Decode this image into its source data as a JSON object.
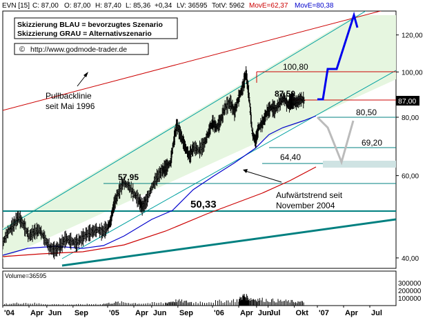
{
  "header": {
    "ticker": "EVN [15]",
    "close": "C: 87,00",
    "open": "O: 87,00",
    "high": "H: 87,40",
    "low": "L: 85,36",
    "change": "+0,34",
    "lv": "LV: 36595",
    "totv": "TotV: 5962",
    "ma1": "MovE=62,37",
    "ma2": "MovE=80,38"
  },
  "colors": {
    "candle": "#000000",
    "ma_fast": "#0000cc",
    "ma_slow": "#cc0000",
    "channel": "#00a0a0",
    "channel_fill": "#e6f6e0",
    "pullback": "#cc0000",
    "scenario_blue": "#0000ee",
    "scenario_grey": "#bbbbbb",
    "target_box": "#cfe3e3",
    "support_teal": "#008080",
    "resistance_red": "#cc0000"
  },
  "legend_box": {
    "line1": "Skizzierung BLAU = bevorzugtes Szenario",
    "line2": "Skizzierung GRAU = Alternativszenario",
    "copyright_symbol": "©",
    "url": "http://www.godmode-trader.de"
  },
  "annotations": {
    "pullback_line1": "Pullbacklinie",
    "pullback_line2": "seit Mai 1996",
    "uptrend_line1": "Aufwärtstrend seit",
    "uptrend_line2": "November 2004",
    "current_price_label": "87,00"
  },
  "volume_panel": {
    "label": "Volume=36595",
    "ticks": [
      "300000",
      "200000",
      "100000"
    ]
  },
  "chart_data": {
    "type": "candlestick",
    "title": "",
    "y_scale": "log",
    "ylim": [
      38,
      135
    ],
    "y_ticks": [
      40,
      60,
      80,
      100,
      120
    ],
    "y_tick_labels": [
      "40,00",
      "60,00",
      "80,00",
      "100,00",
      "120,00"
    ],
    "x_labels": [
      "'04",
      "Apr",
      "Jun",
      "Sep",
      "'05",
      "Apr",
      "Jun",
      "Sep",
      "'06",
      "Apr",
      "Jun",
      "Jul",
      "Okt",
      "'07",
      "Apr",
      "Jul"
    ],
    "price_levels": [
      {
        "value": 100.8,
        "label": "100,80"
      },
      {
        "value": 87.5,
        "label": "87,50"
      },
      {
        "value": 80.5,
        "label": "80,50"
      },
      {
        "value": 69.2,
        "label": "69,20"
      },
      {
        "value": 64.4,
        "label": "64,40"
      },
      {
        "value": 57.95,
        "label": "57,95"
      },
      {
        "value": 50.33,
        "label": "50,33"
      }
    ],
    "close_path": [
      [
        2004.0,
        43
      ],
      [
        2004.05,
        45.5
      ],
      [
        2004.1,
        47
      ],
      [
        2004.15,
        49
      ],
      [
        2004.2,
        47
      ],
      [
        2004.25,
        44.5
      ],
      [
        2004.3,
        45.5
      ],
      [
        2004.35,
        46
      ],
      [
        2004.4,
        44
      ],
      [
        2004.45,
        42
      ],
      [
        2004.5,
        41.5
      ],
      [
        2004.55,
        42.5
      ],
      [
        2004.6,
        44
      ],
      [
        2004.65,
        43.5
      ],
      [
        2004.7,
        43
      ],
      [
        2004.75,
        44
      ],
      [
        2004.8,
        45
      ],
      [
        2004.85,
        45.5
      ],
      [
        2004.9,
        46
      ],
      [
        2004.95,
        45.5
      ],
      [
        2005.0,
        46.5
      ],
      [
        2005.03,
        48
      ],
      [
        2005.06,
        52
      ],
      [
        2005.1,
        55
      ],
      [
        2005.15,
        58
      ],
      [
        2005.2,
        57
      ],
      [
        2005.25,
        55
      ],
      [
        2005.3,
        53
      ],
      [
        2005.33,
        51.5
      ],
      [
        2005.37,
        53
      ],
      [
        2005.42,
        56.5
      ],
      [
        2005.47,
        59.5
      ],
      [
        2005.52,
        61.5
      ],
      [
        2005.56,
        62.5
      ],
      [
        2005.6,
        64
      ],
      [
        2005.63,
        71
      ],
      [
        2005.66,
        77
      ],
      [
        2005.7,
        73
      ],
      [
        2005.74,
        69
      ],
      [
        2005.78,
        66
      ],
      [
        2005.82,
        69
      ],
      [
        2005.87,
        68
      ],
      [
        2005.92,
        70
      ],
      [
        2005.96,
        74
      ],
      [
        2006.0,
        78
      ],
      [
        2006.04,
        76
      ],
      [
        2006.08,
        79
      ],
      [
        2006.12,
        84
      ],
      [
        2006.17,
        86
      ],
      [
        2006.21,
        82
      ],
      [
        2006.25,
        88
      ],
      [
        2006.29,
        93
      ],
      [
        2006.32,
        99.5
      ],
      [
        2006.35,
        88
      ],
      [
        2006.38,
        74
      ],
      [
        2006.41,
        71
      ],
      [
        2006.44,
        76
      ],
      [
        2006.48,
        78
      ],
      [
        2006.52,
        82
      ],
      [
        2006.56,
        84
      ],
      [
        2006.6,
        83
      ],
      [
        2006.64,
        86
      ],
      [
        2006.68,
        88
      ],
      [
        2006.72,
        85
      ],
      [
        2006.76,
        87
      ],
      [
        2006.8,
        86
      ],
      [
        2006.84,
        87.5
      ],
      [
        2006.88,
        87
      ]
    ],
    "volume_spikes": [
      [
        2004.0,
        0.05
      ],
      [
        2004.2,
        0.1
      ],
      [
        2004.45,
        0.05
      ],
      [
        2004.7,
        0.04
      ],
      [
        2004.95,
        0.06
      ],
      [
        2005.1,
        0.12
      ],
      [
        2005.3,
        0.08
      ],
      [
        2005.55,
        0.1
      ],
      [
        2005.66,
        0.18
      ],
      [
        2005.8,
        0.12
      ],
      [
        2006.05,
        0.15
      ],
      [
        2006.25,
        0.2
      ],
      [
        2006.3,
        0.35
      ],
      [
        2006.35,
        0.25
      ],
      [
        2006.45,
        0.22
      ],
      [
        2006.6,
        0.18
      ],
      [
        2006.75,
        0.15
      ],
      [
        2006.88,
        0.12
      ]
    ]
  }
}
